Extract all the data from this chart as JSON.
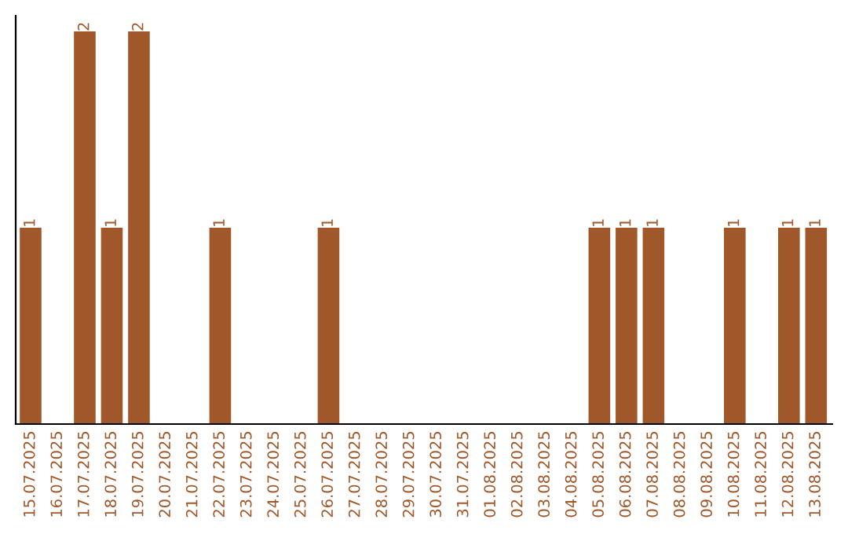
{
  "chart_data": {
    "type": "bar",
    "categories": [
      "15.07.2025",
      "16.07.2025",
      "17.07.2025",
      "18.07.2025",
      "19.07.2025",
      "20.07.2025",
      "21.07.2025",
      "22.07.2025",
      "23.07.2025",
      "24.07.2025",
      "25.07.2025",
      "26.07.2025",
      "27.07.2025",
      "28.07.2025",
      "29.07.2025",
      "30.07.2025",
      "31.07.2025",
      "01.08.2025",
      "02.08.2025",
      "03.08.2025",
      "04.08.2025",
      "05.08.2025",
      "06.08.2025",
      "07.08.2025",
      "08.08.2025",
      "09.08.2025",
      "10.08.2025",
      "11.08.2025",
      "12.08.2025",
      "13.08.2025"
    ],
    "values": [
      1,
      0,
      2,
      1,
      2,
      0,
      0,
      1,
      0,
      0,
      0,
      1,
      0,
      0,
      0,
      0,
      0,
      0,
      0,
      0,
      0,
      1,
      1,
      1,
      0,
      0,
      1,
      0,
      1,
      1
    ],
    "value_labels": [
      "1",
      null,
      "2",
      "1",
      "2",
      null,
      null,
      "1",
      null,
      null,
      null,
      "1",
      null,
      null,
      null,
      null,
      null,
      null,
      null,
      null,
      null,
      "1",
      "1",
      "1",
      null,
      null,
      "1",
      null,
      "1",
      "1"
    ],
    "color": "#a0582a",
    "ylim": [
      0,
      2.08
    ],
    "tick_labels": "x",
    "grid": false,
    "legend": false
  }
}
